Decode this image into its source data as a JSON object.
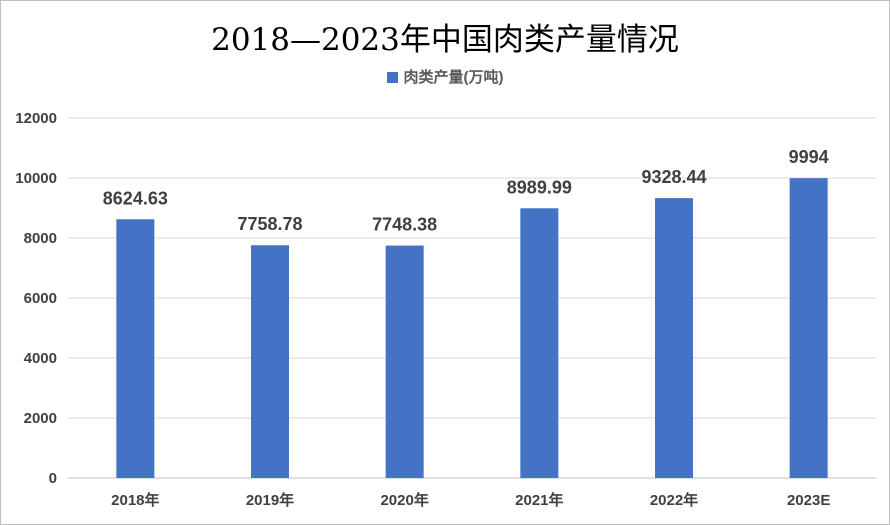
{
  "chart_data": {
    "type": "bar",
    "title": "2018—2023年中国肉类产量情况",
    "categories": [
      "2018年",
      "2019年",
      "2020年",
      "2021年",
      "2022年",
      "2023E"
    ],
    "series": [
      {
        "name": "肉类产量(万吨)",
        "values": [
          8624.63,
          7758.78,
          7748.38,
          8989.99,
          9328.44,
          9994
        ],
        "labels": [
          "8624.63",
          "7758.78",
          "7748.38",
          "8989.99",
          "9328.44",
          "9994"
        ]
      }
    ],
    "ylim": [
      0,
      12000
    ],
    "yticks": [
      0,
      2000,
      4000,
      6000,
      8000,
      10000,
      12000
    ],
    "grid": true,
    "legend_position": "top",
    "colors": {
      "bar": "#4472c4",
      "grid": "#d9d9d9"
    }
  }
}
